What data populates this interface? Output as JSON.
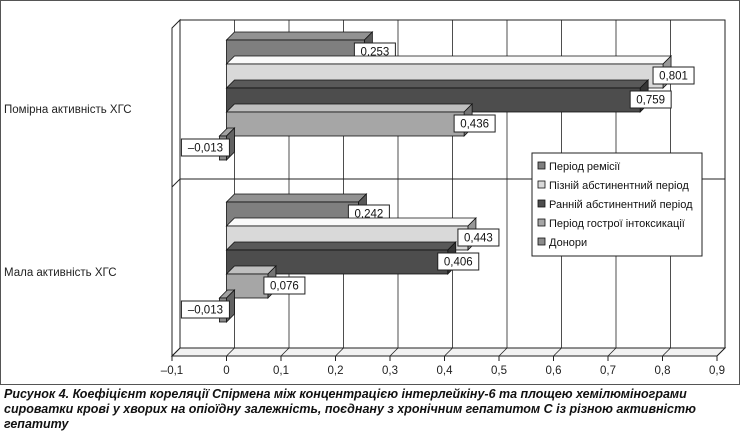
{
  "caption": "Рисунок 4. Коефіцієнт кореляції Спірмена між концентрацією інтерлейкіну-6 та площею хемілюміно­грами сироватки крові у хворих на опіоїдну залежність, поєднану з хронічним гепатитом С із різною активністю гепатиту",
  "chart_data": {
    "type": "bar",
    "orientation": "horizontal",
    "style": "3d",
    "categories": [
      "Помірна активність ХГС",
      "Мала активність ХГС"
    ],
    "series": [
      {
        "name": "Період ремісії",
        "color": "#7f7f7f",
        "values": [
          0.253,
          0.242
        ],
        "labels": [
          "0,253",
          "0,242"
        ]
      },
      {
        "name": "Пізній абстинентний період",
        "color": "#d9d9d9",
        "values": [
          0.801,
          0.443
        ],
        "labels": [
          "0,801",
          "0,443"
        ]
      },
      {
        "name": "Ранній абстинентний період",
        "color": "#4d4d4d",
        "values": [
          0.759,
          0.406
        ],
        "labels": [
          "0,759",
          "0,406"
        ]
      },
      {
        "name": "Період гострої інтоксикації",
        "color": "#a6a6a6",
        "values": [
          0.436,
          0.076
        ],
        "labels": [
          "0,436",
          "0,076"
        ]
      },
      {
        "name": "Донори",
        "color": "#8c8c8c",
        "values": [
          -0.013,
          -0.013
        ],
        "labels": [
          "–0,013",
          "–0,013"
        ]
      }
    ],
    "xlim": [
      -0.1,
      0.9
    ],
    "xticks": [
      -0.1,
      0,
      0.1,
      0.2,
      0.3,
      0.4,
      0.5,
      0.6,
      0.7,
      0.8,
      0.9
    ],
    "xtick_labels": [
      "–0,1",
      "0",
      "0,1",
      "0,2",
      "0,3",
      "0,4",
      "0,5",
      "0,6",
      "0,7",
      "0,8",
      "0,9"
    ],
    "legend_position": "right",
    "grid": "vertical"
  }
}
